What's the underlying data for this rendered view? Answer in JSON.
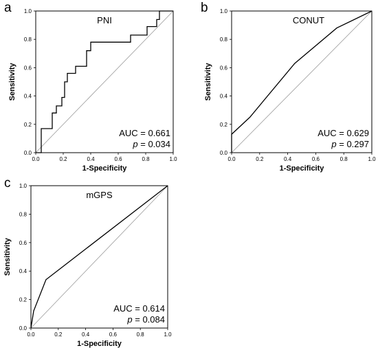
{
  "chart_data": [
    {
      "type": "line",
      "panel_letter": "a",
      "title": "PNI",
      "xlabel": "1-Specificity",
      "ylabel": "Sensitivity",
      "xlim": [
        0,
        1
      ],
      "ylim": [
        0,
        1
      ],
      "xticks": [
        "0.0",
        "0.2",
        "0.4",
        "0.6",
        "0.8",
        "1.0"
      ],
      "yticks": [
        "0.0",
        "0.2",
        "0.4",
        "0.6",
        "0.8",
        "1.0"
      ],
      "auc_label": "AUC = 0.661",
      "p_symbol": "p",
      "p_value": " = 0.034",
      "reference_line": true,
      "series": [
        {
          "curve": "step",
          "x": [
            0.0,
            0.04,
            0.04,
            0.12,
            0.12,
            0.15,
            0.15,
            0.19,
            0.19,
            0.21,
            0.21,
            0.23,
            0.23,
            0.29,
            0.29,
            0.37,
            0.37,
            0.4,
            0.4,
            0.43,
            0.43,
            0.69,
            0.69,
            0.81,
            0.81,
            0.85,
            0.85,
            0.88,
            0.88,
            0.9,
            0.9,
            1.0
          ],
          "y": [
            0.0,
            0.0,
            0.17,
            0.17,
            0.28,
            0.28,
            0.33,
            0.33,
            0.39,
            0.39,
            0.5,
            0.5,
            0.56,
            0.56,
            0.61,
            0.61,
            0.72,
            0.72,
            0.78,
            0.78,
            0.78,
            0.78,
            0.83,
            0.83,
            0.89,
            0.89,
            0.89,
            0.89,
            0.94,
            0.94,
            1.0,
            1.0
          ]
        }
      ]
    },
    {
      "type": "line",
      "panel_letter": "b",
      "title": "CONUT",
      "xlabel": "1-Specificity",
      "ylabel": "Sensitivity",
      "xlim": [
        0,
        1
      ],
      "ylim": [
        0,
        1
      ],
      "xticks": [
        "0.0",
        "0.2",
        "0.4",
        "0.6",
        "0.8",
        "1.0"
      ],
      "yticks": [
        "0.0",
        "0.2",
        "0.4",
        "0.6",
        "0.8",
        "1.0"
      ],
      "auc_label": "AUC = 0.629",
      "p_symbol": "p",
      "p_value": " = 0.297",
      "reference_line": true,
      "series": [
        {
          "curve": "linear",
          "x": [
            0.0,
            0.0,
            0.13,
            0.45,
            0.75,
            1.0
          ],
          "y": [
            0.0,
            0.13,
            0.25,
            0.63,
            0.88,
            1.0
          ]
        }
      ]
    },
    {
      "type": "line",
      "panel_letter": "c",
      "title": "mGPS",
      "xlabel": "1-Specificity",
      "ylabel": "Sensitivity",
      "xlim": [
        0,
        1
      ],
      "ylim": [
        0,
        1
      ],
      "xticks": [
        "0.0",
        "0.2",
        "0.4",
        "0.6",
        "0.8",
        "1.0"
      ],
      "yticks": [
        "0.0",
        "0.2",
        "0.4",
        "0.6",
        "0.8",
        "1.0"
      ],
      "auc_label": "AUC = 0.614",
      "p_symbol": "p",
      "p_value": " = 0.084",
      "reference_line": true,
      "series": [
        {
          "curve": "linear",
          "x": [
            0.0,
            0.02,
            0.11,
            1.0
          ],
          "y": [
            0.0,
            0.12,
            0.34,
            1.0
          ]
        }
      ]
    }
  ]
}
